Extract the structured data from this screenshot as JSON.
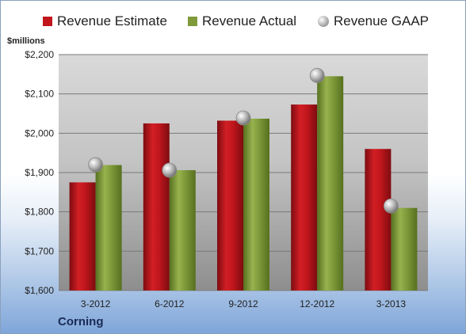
{
  "legend": {
    "estimate_label": "Revenue Estimate",
    "actual_label": "Revenue Actual",
    "gaap_label": "Revenue GAAP"
  },
  "unit_label": "$millions",
  "company_label": "Corning",
  "colors": {
    "estimate": "#c0161c",
    "actual": "#7e9a3a",
    "gaap": "#a8a8a8"
  },
  "chart_data": {
    "type": "bar",
    "categories": [
      "3-2012",
      "6-2012",
      "9-2012",
      "12-2012",
      "3-2013"
    ],
    "series": [
      {
        "name": "Revenue Estimate",
        "values": [
          1875,
          2025,
          2032,
          2073,
          1960
        ]
      },
      {
        "name": "Revenue Actual",
        "values": [
          1919,
          1906,
          2037,
          2145,
          1810
        ]
      },
      {
        "name": "Revenue GAAP",
        "values": [
          1920,
          1906,
          2039,
          2147,
          1815
        ],
        "style": "marker"
      }
    ],
    "ylim": [
      1600,
      2200
    ],
    "yticks": [
      1600,
      1700,
      1800,
      1900,
      2000,
      2100,
      2200
    ],
    "ytick_labels": [
      "$1,600",
      "$1,700",
      "$1,800",
      "$1,900",
      "$2,000",
      "$2,100",
      "$2,200"
    ],
    "ylabel": "$millions",
    "grid": true,
    "legend_position": "top"
  }
}
